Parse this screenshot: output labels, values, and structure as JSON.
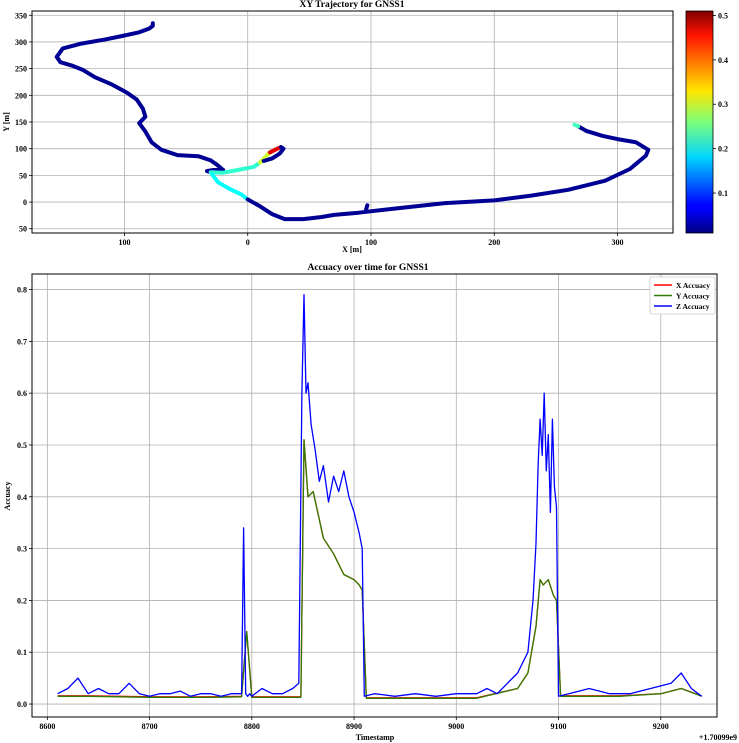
{
  "chart_data": [
    {
      "type": "scatter",
      "title": "XY Trajectory for GNSS1",
      "xlabel": "X [m]",
      "ylabel": "Y [m]",
      "xlim": [
        -175,
        345
      ],
      "ylim": [
        -58,
        358
      ],
      "xticks": [
        -100,
        0,
        100,
        200,
        300
      ],
      "xtick_labels": [
        "100",
        "0",
        "100",
        "200",
        "300"
      ],
      "yticks": [
        350,
        300,
        250,
        200,
        150,
        100,
        50,
        0,
        -50
      ],
      "ytick_labels": [
        "350",
        "300",
        "250",
        "200",
        "150",
        "100",
        "50",
        "0",
        "50"
      ],
      "grid": true,
      "colormap": "jet",
      "colorbar": {
        "range": [
          0.01,
          0.51
        ],
        "ticks": [
          0.1,
          0.2,
          0.3,
          0.4,
          0.5
        ],
        "tick_labels": [
          "0.1",
          "0.2",
          "0.3",
          "0.4",
          "0.5"
        ]
      },
      "segments": [
        {
          "accuracy": 0.02,
          "points": [
            [
              -77,
              335
            ],
            [
              -77,
              330
            ],
            [
              -80,
              325
            ],
            [
              -88,
              318
            ],
            [
              -100,
              312
            ],
            [
              -115,
              305
            ],
            [
              -135,
              297
            ],
            [
              -150,
              288
            ],
            [
              -155,
              272
            ],
            [
              -152,
              262
            ],
            [
              -143,
              256
            ],
            [
              -134,
              248
            ],
            [
              -124,
              234
            ],
            [
              -110,
              220
            ],
            [
              -98,
              205
            ],
            [
              -90,
              192
            ],
            [
              -85,
              175
            ],
            [
              -83,
              160
            ],
            [
              -88,
              148
            ],
            [
              -83,
              132
            ],
            [
              -78,
              112
            ],
            [
              -70,
              98
            ],
            [
              -57,
              88
            ],
            [
              -40,
              86
            ],
            [
              -30,
              78
            ],
            [
              -25,
              70
            ],
            [
              -20,
              60
            ]
          ]
        },
        {
          "accuracy": 0.02,
          "points": [
            [
              -20,
              60
            ],
            [
              -28,
              60
            ],
            [
              -33,
              58
            ],
            [
              -30,
              56
            ]
          ]
        },
        {
          "accuracy": 0.22,
          "points": [
            [
              -30,
              56
            ],
            [
              -20,
              55
            ],
            [
              -8,
              60
            ],
            [
              5,
              66
            ],
            [
              10,
              74
            ]
          ]
        },
        {
          "accuracy": 0.3,
          "points": [
            [
              10,
              74
            ],
            [
              14,
              84
            ],
            [
              18,
              93
            ]
          ]
        },
        {
          "accuracy": 0.46,
          "points": [
            [
              18,
              93
            ],
            [
              24,
              100
            ],
            [
              27,
              103
            ]
          ]
        },
        {
          "accuracy": 0.02,
          "points": [
            [
              27,
              103
            ],
            [
              29,
              100
            ],
            [
              26,
              91
            ],
            [
              20,
              82
            ],
            [
              13,
              77
            ]
          ]
        },
        {
          "accuracy": 0.2,
          "points": [
            [
              -29,
              52
            ],
            [
              -24,
              37
            ],
            [
              -15,
              25
            ],
            [
              -5,
              14
            ],
            [
              0,
              5
            ]
          ]
        },
        {
          "accuracy": 0.02,
          "points": [
            [
              0,
              5
            ],
            [
              10,
              -8
            ],
            [
              20,
              -23
            ],
            [
              30,
              -32
            ],
            [
              45,
              -32
            ],
            [
              60,
              -28
            ],
            [
              70,
              -24
            ],
            [
              90,
              -20
            ],
            [
              120,
              -12
            ],
            [
              160,
              -2
            ],
            [
              200,
              3
            ],
            [
              230,
              12
            ],
            [
              260,
              23
            ],
            [
              290,
              40
            ],
            [
              310,
              62
            ],
            [
              323,
              87
            ],
            [
              325,
              98
            ],
            [
              315,
              112
            ],
            [
              300,
              118
            ],
            [
              288,
              124
            ],
            [
              275,
              133
            ],
            [
              268,
              142
            ]
          ]
        },
        {
          "accuracy": 0.23,
          "points": [
            [
              268,
              142
            ],
            [
              265,
              145
            ]
          ]
        },
        {
          "accuracy": 0.02,
          "points": [
            [
              97,
              -6
            ],
            [
              96,
              -14
            ]
          ]
        }
      ]
    },
    {
      "type": "line",
      "title": "Accuacy over time for GNSS1",
      "xlabel": "Timestamp",
      "ylabel": "Accuacy",
      "offset_label": "+1.70099e9",
      "xlim": [
        8585,
        9255
      ],
      "ylim": [
        -0.025,
        0.83
      ],
      "xticks": [
        8600,
        8700,
        8800,
        8900,
        9000,
        9100,
        9200
      ],
      "xtick_labels": [
        "8600",
        "8700",
        "8800",
        "8900",
        "9000",
        "9100",
        "9200"
      ],
      "yticks": [
        0.0,
        0.1,
        0.2,
        0.3,
        0.4,
        0.5,
        0.6,
        0.7,
        0.8
      ],
      "ytick_labels": [
        "0.0",
        "0.1",
        "0.2",
        "0.3",
        "0.4",
        "0.5",
        "0.6",
        "0.7",
        "0.8"
      ],
      "grid": true,
      "legend_position": "top-right",
      "series": [
        {
          "name": "X Accuacy",
          "color": "#ff0000",
          "x": [
            8610,
            8640,
            8700,
            8760,
            8790,
            8795,
            8800,
            8848,
            8851,
            8855,
            8860,
            8870,
            8880,
            8890,
            8900,
            8905,
            8908,
            8912,
            8960,
            9020,
            9060,
            9070,
            9078,
            9082,
            9085,
            9090,
            9095,
            9098,
            9102,
            9160,
            9200,
            9220,
            9240
          ],
          "values": [
            0.016,
            0.016,
            0.014,
            0.014,
            0.015,
            0.14,
            0.014,
            0.014,
            0.51,
            0.4,
            0.41,
            0.32,
            0.29,
            0.25,
            0.24,
            0.23,
            0.22,
            0.012,
            0.012,
            0.012,
            0.03,
            0.06,
            0.15,
            0.24,
            0.23,
            0.24,
            0.21,
            0.2,
            0.016,
            0.016,
            0.02,
            0.03,
            0.016
          ]
        },
        {
          "name": "Y Accuacy",
          "color": "#2e7d00",
          "x": [
            8610,
            8640,
            8700,
            8760,
            8790,
            8795,
            8800,
            8848,
            8851,
            8855,
            8860,
            8870,
            8880,
            8890,
            8900,
            8905,
            8908,
            8912,
            8960,
            9020,
            9060,
            9070,
            9078,
            9082,
            9085,
            9090,
            9095,
            9098,
            9102,
            9160,
            9200,
            9220,
            9240
          ],
          "values": [
            0.015,
            0.015,
            0.013,
            0.013,
            0.014,
            0.14,
            0.013,
            0.013,
            0.51,
            0.4,
            0.41,
            0.32,
            0.29,
            0.25,
            0.24,
            0.23,
            0.22,
            0.011,
            0.011,
            0.011,
            0.03,
            0.06,
            0.15,
            0.24,
            0.23,
            0.24,
            0.21,
            0.2,
            0.015,
            0.015,
            0.02,
            0.03,
            0.015
          ]
        },
        {
          "name": "Z Accuacy",
          "color": "#0000ff",
          "x": [
            8610,
            8620,
            8630,
            8640,
            8650,
            8660,
            8670,
            8680,
            8690,
            8700,
            8710,
            8720,
            8730,
            8740,
            8750,
            8760,
            8770,
            8780,
            8790,
            8792,
            8794,
            8796,
            8798,
            8800,
            8810,
            8820,
            8830,
            8840,
            8846,
            8849,
            8851,
            8853,
            8855,
            8858,
            8862,
            8866,
            8870,
            8875,
            8880,
            8885,
            8890,
            8895,
            8900,
            8905,
            8908,
            8910,
            8920,
            8940,
            8960,
            8980,
            9000,
            9020,
            9030,
            9040,
            9050,
            9060,
            9070,
            9075,
            9078,
            9080,
            9082,
            9084,
            9086,
            9088,
            9090,
            9092,
            9094,
            9096,
            9098,
            9100,
            9110,
            9130,
            9150,
            9170,
            9190,
            9210,
            9220,
            9230,
            9240
          ],
          "values": [
            0.02,
            0.03,
            0.05,
            0.02,
            0.03,
            0.02,
            0.02,
            0.04,
            0.02,
            0.015,
            0.02,
            0.02,
            0.025,
            0.015,
            0.02,
            0.02,
            0.015,
            0.02,
            0.02,
            0.34,
            0.02,
            0.015,
            0.02,
            0.015,
            0.03,
            0.02,
            0.02,
            0.03,
            0.04,
            0.6,
            0.79,
            0.6,
            0.62,
            0.54,
            0.49,
            0.43,
            0.46,
            0.39,
            0.44,
            0.41,
            0.45,
            0.4,
            0.37,
            0.33,
            0.3,
            0.015,
            0.02,
            0.015,
            0.02,
            0.015,
            0.02,
            0.02,
            0.03,
            0.02,
            0.04,
            0.06,
            0.1,
            0.2,
            0.31,
            0.46,
            0.55,
            0.48,
            0.6,
            0.45,
            0.52,
            0.37,
            0.55,
            0.42,
            0.38,
            0.015,
            0.02,
            0.03,
            0.02,
            0.02,
            0.03,
            0.04,
            0.06,
            0.03,
            0.015
          ]
        }
      ]
    }
  ]
}
